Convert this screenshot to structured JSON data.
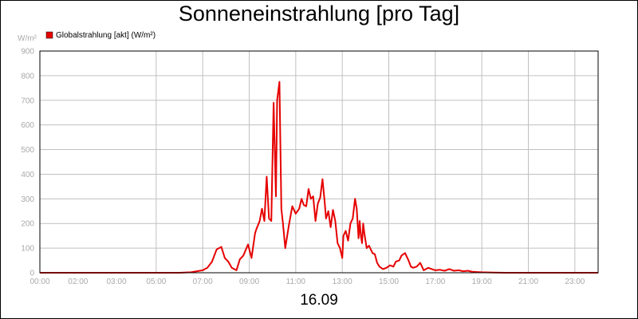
{
  "chart_data": {
    "type": "line",
    "title": "Sonneneinstrahlung [pro Tag]",
    "ylabel": "W/m²",
    "xlabel": "16.09",
    "ylim": [
      0,
      900
    ],
    "xlim": [
      0,
      24
    ],
    "y_ticks": [
      "0",
      "100",
      "200",
      "300",
      "400",
      "500",
      "600",
      "700",
      "800",
      "900"
    ],
    "x_ticks": [
      {
        "h": 0,
        "label": "00:00"
      },
      {
        "h": 2,
        "label": "02:00"
      },
      {
        "h": 3,
        "label": "03:00"
      },
      {
        "h": 5,
        "label": "05:00"
      },
      {
        "h": 7,
        "label": "07:00"
      },
      {
        "h": 9,
        "label": "09:00"
      },
      {
        "h": 11,
        "label": "11:00"
      },
      {
        "h": 13,
        "label": "13:00"
      },
      {
        "h": 15,
        "label": "15:00"
      },
      {
        "h": 17,
        "label": "17:00"
      },
      {
        "h": 19,
        "label": "19:00"
      },
      {
        "h": 21,
        "label": "21:00"
      },
      {
        "h": 23,
        "label": "23:00"
      }
    ],
    "grid": true,
    "legend_position": "top-left",
    "series": [
      {
        "name": "Globalstrahlung [akt] (W/m²)",
        "color": "#e60000",
        "x": [
          0,
          6.0,
          6.5,
          7.0,
          7.2,
          7.4,
          7.6,
          7.8,
          7.95,
          8.1,
          8.25,
          8.45,
          8.6,
          8.75,
          8.95,
          9.1,
          9.25,
          9.3,
          9.45,
          9.55,
          9.65,
          9.75,
          9.85,
          9.95,
          10.05,
          10.15,
          10.2,
          10.3,
          10.38,
          10.45,
          10.55,
          10.7,
          10.85,
          11.0,
          11.15,
          11.25,
          11.35,
          11.45,
          11.55,
          11.65,
          11.75,
          11.85,
          11.95,
          12.05,
          12.15,
          12.25,
          12.3,
          12.4,
          12.5,
          12.6,
          12.7,
          12.8,
          12.9,
          13.0,
          13.05,
          13.15,
          13.25,
          13.35,
          13.45,
          13.55,
          13.62,
          13.7,
          13.75,
          13.8,
          13.85,
          13.9,
          13.95,
          14.05,
          14.15,
          14.3,
          14.4,
          14.5,
          14.6,
          14.75,
          14.9,
          15.05,
          15.2,
          15.3,
          15.45,
          15.55,
          15.7,
          15.85,
          15.95,
          16.05,
          16.2,
          16.35,
          16.5,
          16.6,
          16.7,
          16.85,
          17.0,
          17.2,
          17.4,
          17.6,
          17.8,
          18.0,
          18.2,
          18.4,
          18.6,
          18.8,
          19.0,
          19.5,
          20.0,
          24.0
        ],
        "values": [
          0,
          0,
          2,
          10,
          20,
          45,
          95,
          105,
          60,
          45,
          20,
          10,
          55,
          70,
          115,
          60,
          160,
          175,
          210,
          260,
          210,
          390,
          220,
          210,
          690,
          310,
          700,
          775,
          260,
          200,
          100,
          190,
          270,
          240,
          260,
          300,
          275,
          270,
          340,
          300,
          310,
          210,
          280,
          305,
          380,
          280,
          220,
          250,
          185,
          255,
          210,
          120,
          100,
          60,
          150,
          170,
          130,
          200,
          220,
          300,
          260,
          140,
          210,
          150,
          120,
          200,
          160,
          100,
          110,
          80,
          75,
          40,
          25,
          15,
          20,
          30,
          25,
          45,
          50,
          70,
          80,
          50,
          25,
          20,
          25,
          40,
          10,
          15,
          20,
          15,
          10,
          12,
          8,
          15,
          8,
          10,
          6,
          8,
          4,
          3,
          2,
          1,
          0,
          0
        ]
      }
    ]
  }
}
